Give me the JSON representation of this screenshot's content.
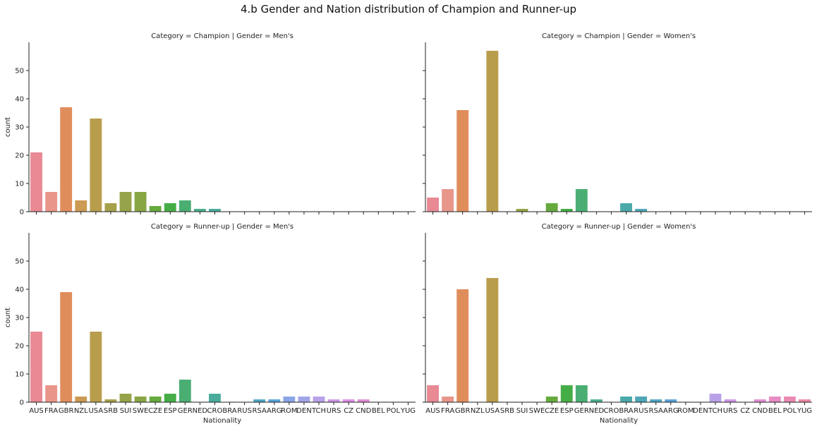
{
  "title": "4.b Gender and Nation distribution of Champion and Runner-up",
  "chart_data": {
    "type": "bar",
    "categories": [
      "AUS",
      "FRA",
      "GBR",
      "NZL",
      "USA",
      "SRB",
      "SUI",
      "SWE",
      "CZE",
      "ESP",
      "GER",
      "NED",
      "CRO",
      "BRA",
      "RUS",
      "RSA",
      "ARG",
      "ROM",
      "DEN",
      "TCH",
      "URS",
      "CZ",
      "CND",
      "BEL",
      "POL",
      "YUG"
    ],
    "colors": [
      "#e88994",
      "#e8968a",
      "#e08d5c",
      "#cc9a52",
      "#b89d4c",
      "#a7a04b",
      "#96a349",
      "#88a644",
      "#66aa3d",
      "#45ad46",
      "#4aae73",
      "#4bad8d",
      "#4aab9c",
      "#4ba9a9",
      "#4ca7b6",
      "#4fa5c5",
      "#5aa3d9",
      "#8aa6e6",
      "#a3a4e8",
      "#b9a1e8",
      "#cc98e6",
      "#dd8ee6",
      "#e38cd4",
      "#e78bc2",
      "#e98ab2",
      "#e889a4"
    ],
    "xlabel": "Nationality",
    "ylabel": "count",
    "ylim": [
      0,
      60
    ],
    "yticks": [
      0,
      10,
      20,
      30,
      40,
      50
    ],
    "panels": [
      {
        "title": "Category = Champion | Gender = Men's",
        "values": [
          21,
          7,
          37,
          4,
          33,
          3,
          7,
          7,
          2,
          3,
          4,
          1,
          1,
          0,
          0,
          0,
          0,
          0,
          0,
          0,
          0,
          0,
          0,
          0,
          0,
          0
        ]
      },
      {
        "title": "Category = Champion | Gender = Women's",
        "values": [
          5,
          8,
          36,
          0,
          57,
          0,
          1,
          0,
          3,
          1,
          8,
          0,
          0,
          3,
          1,
          0,
          0,
          0,
          0,
          0,
          0,
          0,
          0,
          0,
          0,
          0
        ]
      },
      {
        "title": "Category = Runner-up | Gender = Men's",
        "values": [
          25,
          6,
          39,
          2,
          25,
          1,
          3,
          2,
          2,
          3,
          8,
          0,
          3,
          0,
          0,
          1,
          1,
          2,
          2,
          2,
          1,
          1,
          1,
          0,
          0,
          0
        ]
      },
      {
        "title": "Category = Runner-up | Gender = Women's",
        "values": [
          6,
          2,
          40,
          0,
          44,
          0,
          0,
          0,
          2,
          6,
          6,
          1,
          0,
          2,
          2,
          1,
          1,
          0,
          0,
          3,
          1,
          0,
          1,
          2,
          2,
          1
        ]
      }
    ]
  }
}
